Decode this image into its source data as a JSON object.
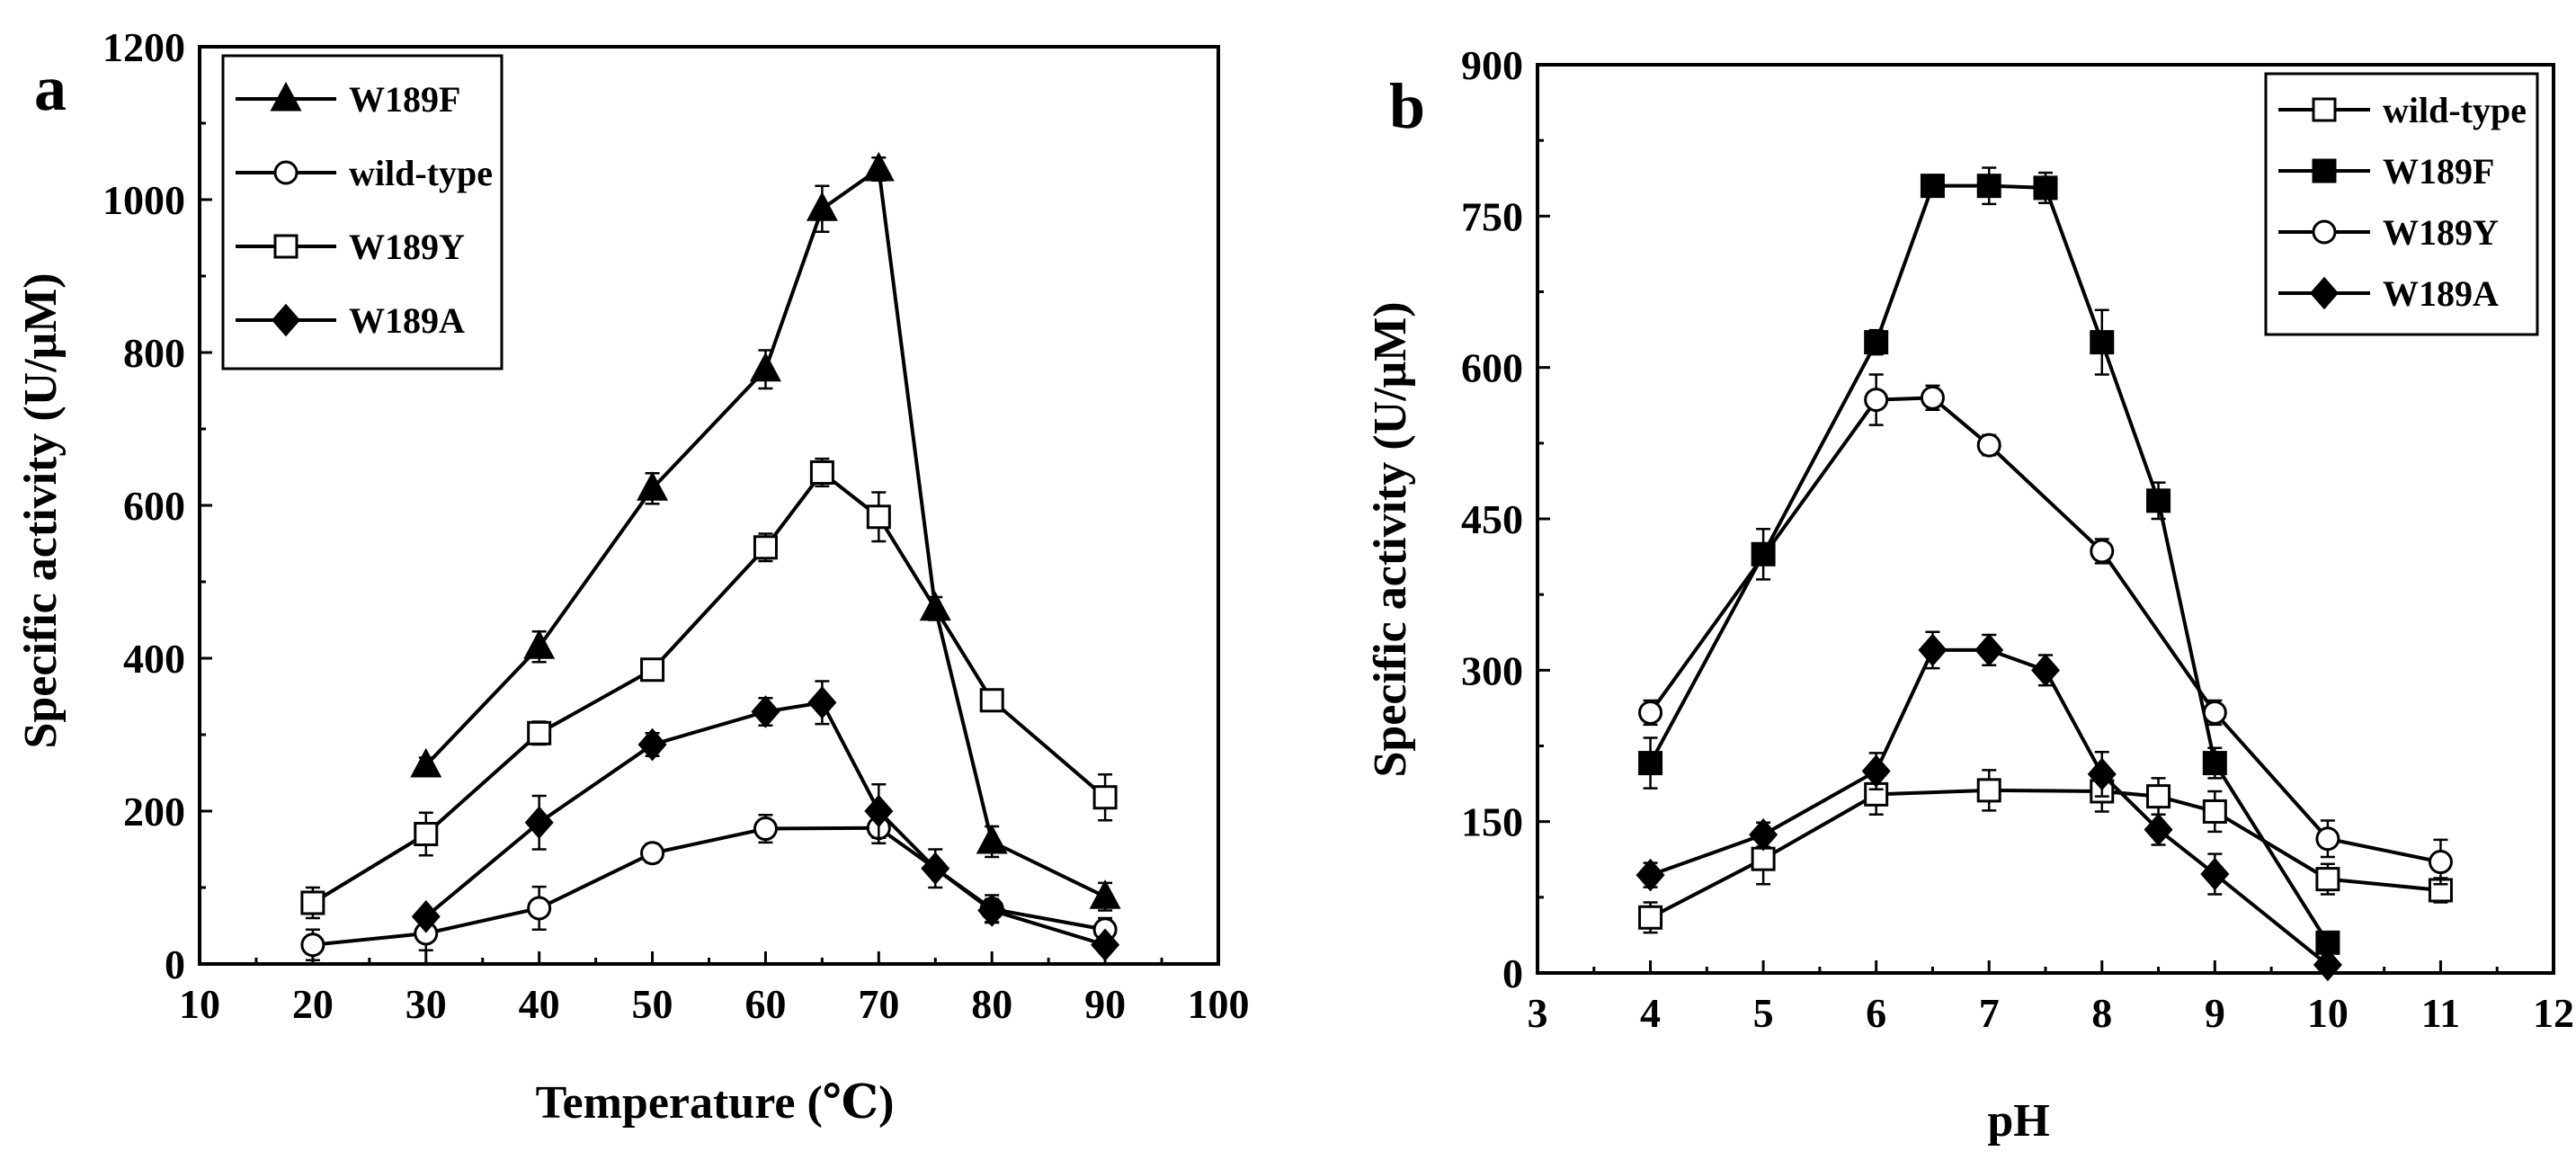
{
  "chart_data": [
    {
      "type": "line",
      "panel_label": "a",
      "title": "",
      "xlabel": "Temperature (℃)",
      "ylabel": "Specific activity (U/μM)",
      "xlim": [
        10,
        100
      ],
      "ylim": [
        0,
        1200
      ],
      "xticks": [
        "10",
        "20",
        "30",
        "40",
        "50",
        "60",
        "70",
        "80",
        "90",
        "100"
      ],
      "yticks": [
        "0",
        "200",
        "400",
        "600",
        "800",
        "1000",
        "1200"
      ],
      "legend_position": "top-left",
      "series": [
        {
          "name": "W189F",
          "marker": "triangle-filled",
          "x": [
            30,
            40,
            50,
            60,
            65,
            70,
            75,
            80,
            90
          ],
          "y": [
            260,
            415,
            622,
            778,
            988,
            1040,
            465,
            160,
            88
          ],
          "err": [
            10,
            20,
            20,
            25,
            30,
            15,
            15,
            20,
            18
          ]
        },
        {
          "name": "wild-type",
          "marker": "circle-open",
          "x": [
            20,
            30,
            40,
            50,
            60,
            70,
            80,
            90
          ],
          "y": [
            25,
            40,
            73,
            145,
            177,
            178,
            72,
            45
          ],
          "err": [
            20,
            22,
            28,
            12,
            18,
            20,
            18,
            15
          ]
        },
        {
          "name": "W189Y",
          "marker": "square-open",
          "x": [
            20,
            30,
            40,
            50,
            60,
            65,
            70,
            80,
            90
          ],
          "y": [
            80,
            170,
            302,
            385,
            545,
            643,
            585,
            345,
            218
          ],
          "err": [
            20,
            28,
            15,
            10,
            18,
            18,
            32,
            10,
            30
          ]
        },
        {
          "name": "W189A",
          "marker": "diamond-filled",
          "x": [
            30,
            40,
            50,
            60,
            65,
            70,
            75,
            80,
            90
          ],
          "y": [
            62,
            185,
            287,
            330,
            342,
            200,
            125,
            70,
            25
          ],
          "err": [
            8,
            35,
            15,
            18,
            28,
            35,
            25,
            15,
            8
          ]
        }
      ]
    },
    {
      "type": "line",
      "panel_label": "b",
      "title": "",
      "xlabel": "pH",
      "ylabel": "Specific activity (U/μM)",
      "xlim": [
        3,
        12
      ],
      "ylim": [
        0,
        900
      ],
      "xticks": [
        "3",
        "4",
        "5",
        "6",
        "7",
        "8",
        "9",
        "10",
        "11",
        "12"
      ],
      "yticks": [
        "0",
        "150",
        "300",
        "450",
        "600",
        "750",
        "900"
      ],
      "legend_position": "top-right",
      "series": [
        {
          "name": "wild-type",
          "marker": "square-open",
          "x": [
            4,
            5,
            6,
            7,
            8,
            8.5,
            9,
            10,
            11
          ],
          "y": [
            55,
            113,
            177,
            181,
            180,
            175,
            160,
            93,
            82
          ],
          "err": [
            15,
            25,
            20,
            20,
            20,
            18,
            20,
            15,
            12
          ]
        },
        {
          "name": "W189F",
          "marker": "square-filled",
          "x": [
            4,
            5,
            6,
            6.5,
            7,
            7.5,
            8,
            8.5,
            9,
            10
          ],
          "y": [
            208,
            415,
            625,
            780,
            780,
            778,
            625,
            468,
            208,
            30
          ],
          "err": [
            25,
            25,
            12,
            8,
            18,
            15,
            32,
            18,
            15,
            10
          ]
        },
        {
          "name": "W189Y",
          "marker": "circle-open",
          "x": [
            4,
            6,
            6.5,
            7,
            8,
            9,
            10,
            11
          ],
          "y": [
            258,
            568,
            570,
            523,
            418,
            258,
            133,
            110
          ],
          "err": [
            12,
            25,
            12,
            10,
            12,
            12,
            18,
            22
          ]
        },
        {
          "name": "W189A",
          "marker": "diamond-filled",
          "x": [
            4,
            5,
            6,
            6.5,
            7,
            7.5,
            8,
            8.5,
            9,
            10
          ],
          "y": [
            97,
            137,
            200,
            320,
            320,
            300,
            197,
            142,
            98,
            8
          ],
          "err": [
            12,
            12,
            18,
            18,
            15,
            15,
            22,
            15,
            20,
            5
          ]
        }
      ]
    }
  ]
}
